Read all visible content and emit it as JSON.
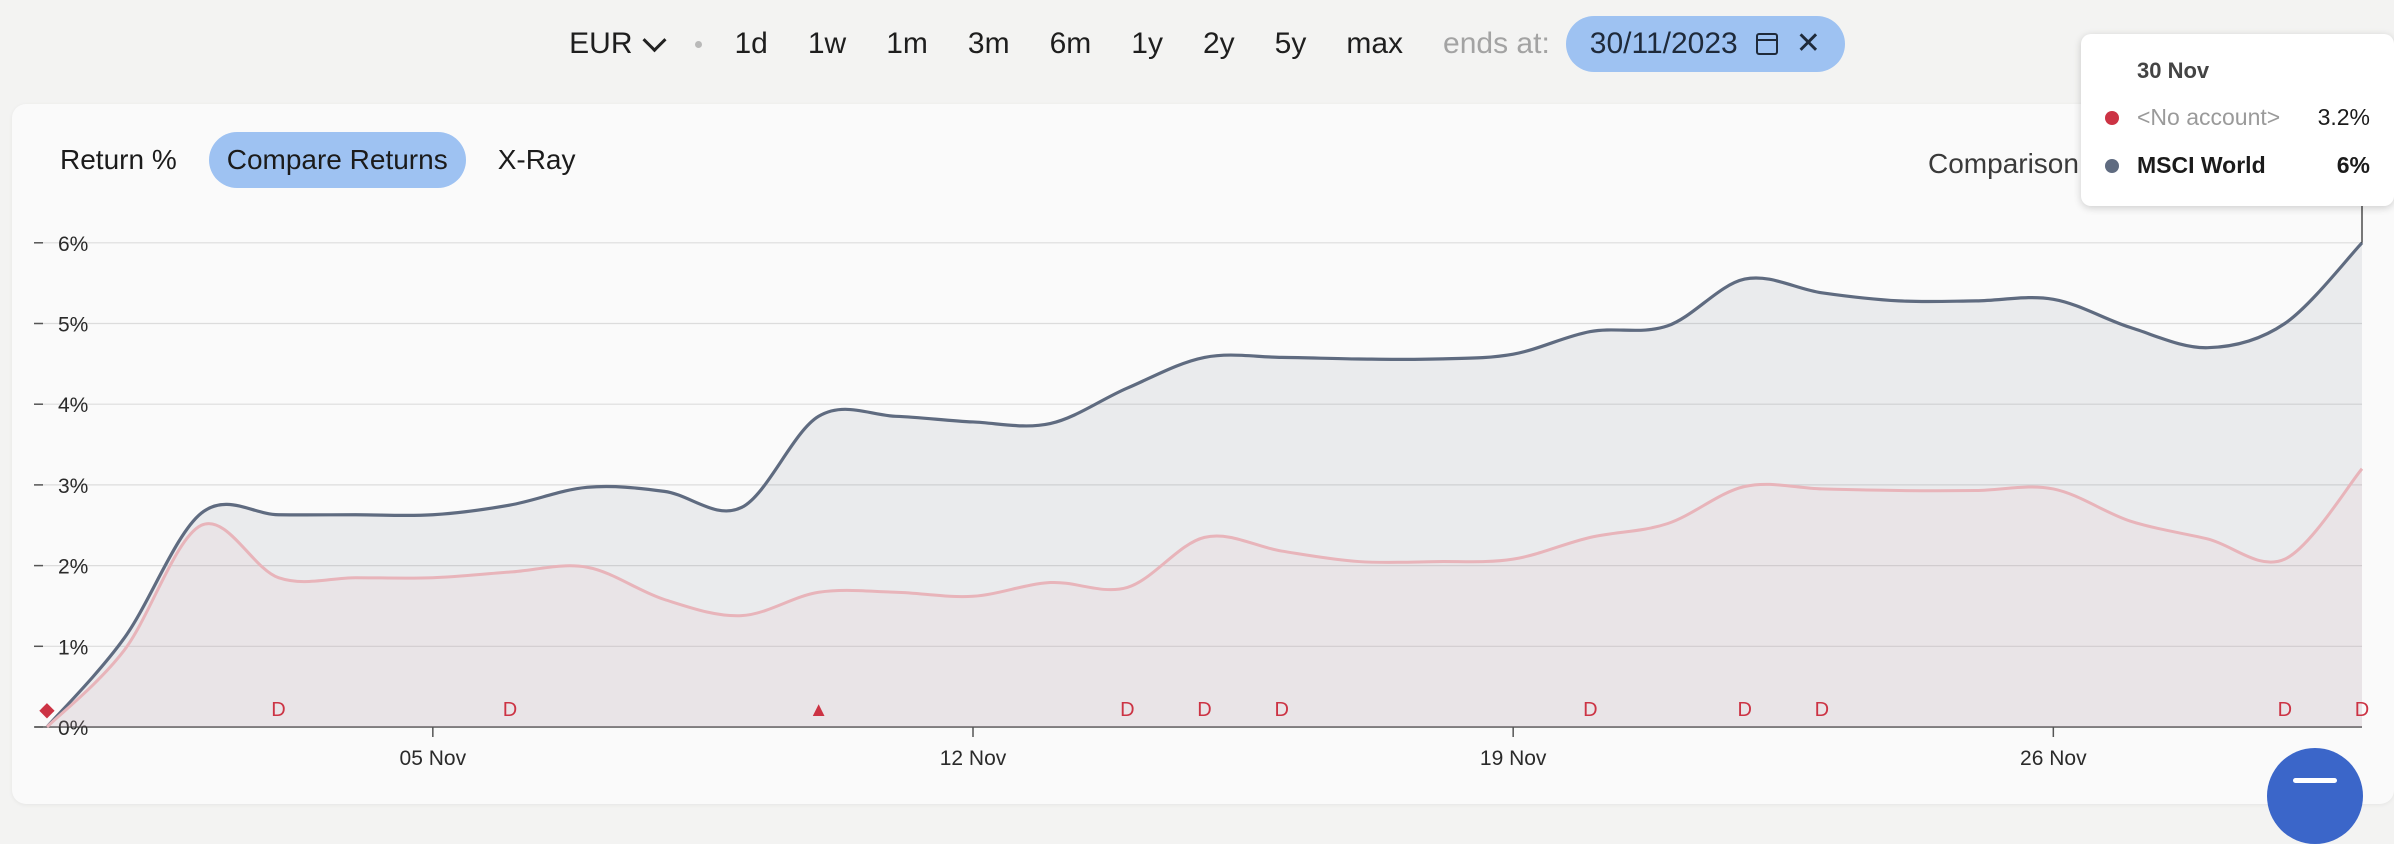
{
  "toolbar": {
    "currency": "EUR",
    "ranges": [
      "1d",
      "1w",
      "1m",
      "3m",
      "6m",
      "1y",
      "2y",
      "5y",
      "max"
    ],
    "ends_label": "ends at:",
    "end_date": "30/11/2023"
  },
  "tabs": [
    "Return %",
    "Compare Returns",
    "X-Ray"
  ],
  "active_tab": "Compare Returns",
  "comparison_label": "Comparison",
  "tooltip": {
    "title": "30 Nov",
    "rows": [
      {
        "name": "<No account>",
        "value": "3.2%",
        "color": "#cc3344"
      },
      {
        "name": "MSCI World",
        "value": "6%",
        "color": "#5f6b80"
      }
    ]
  },
  "colors": {
    "accent": "#9ec2f2",
    "msci": "#5f6b80",
    "account": "#e8b4ba",
    "marker": "#cc3344",
    "fab": "#3b66c9"
  },
  "chart_data": {
    "type": "line",
    "x_ticks": [
      "05 Nov",
      "12 Nov",
      "19 Nov",
      "26 Nov"
    ],
    "y_ticks": [
      "0%",
      "1%",
      "2%",
      "3%",
      "4%",
      "5%",
      "6%"
    ],
    "ylim": [
      0,
      6
    ],
    "grid": true,
    "x": [
      "31 Oct",
      "01 Nov",
      "02 Nov",
      "03 Nov",
      "04 Nov",
      "05 Nov",
      "06 Nov",
      "07 Nov",
      "08 Nov",
      "09 Nov",
      "10 Nov",
      "11 Nov",
      "12 Nov",
      "13 Nov",
      "14 Nov",
      "15 Nov",
      "16 Nov",
      "17 Nov",
      "18 Nov",
      "19 Nov",
      "20 Nov",
      "21 Nov",
      "22 Nov",
      "23 Nov",
      "24 Nov",
      "25 Nov",
      "26 Nov",
      "27 Nov",
      "28 Nov",
      "29 Nov",
      "30 Nov"
    ],
    "series": [
      {
        "name": "MSCI World",
        "values": [
          0,
          1.1,
          2.65,
          2.63,
          2.63,
          2.63,
          2.75,
          2.97,
          2.92,
          2.72,
          3.85,
          3.85,
          3.78,
          3.76,
          4.2,
          4.58,
          4.58,
          4.56,
          4.56,
          4.62,
          4.9,
          4.97,
          5.55,
          5.38,
          5.28,
          5.28,
          5.3,
          4.95,
          4.7,
          5.0,
          6.0
        ]
      },
      {
        "name": "<No account>",
        "values": [
          0,
          0.95,
          2.5,
          1.85,
          1.85,
          1.85,
          1.92,
          1.98,
          1.58,
          1.38,
          1.67,
          1.67,
          1.62,
          1.79,
          1.73,
          2.35,
          2.18,
          2.05,
          2.05,
          2.08,
          2.35,
          2.52,
          2.98,
          2.95,
          2.93,
          2.93,
          2.95,
          2.55,
          2.33,
          2.08,
          3.2
        ]
      }
    ],
    "event_markers": [
      {
        "date": "31 Oct",
        "symbol": "◆"
      },
      {
        "date": "03 Nov",
        "symbol": "D"
      },
      {
        "date": "06 Nov",
        "symbol": "D"
      },
      {
        "date": "10 Nov",
        "symbol": "▲"
      },
      {
        "date": "14 Nov",
        "symbol": "D"
      },
      {
        "date": "15 Nov",
        "symbol": "D"
      },
      {
        "date": "16 Nov",
        "symbol": "D"
      },
      {
        "date": "20 Nov",
        "symbol": "D"
      },
      {
        "date": "22 Nov",
        "symbol": "D"
      },
      {
        "date": "23 Nov",
        "symbol": "D"
      },
      {
        "date": "29 Nov",
        "symbol": "D"
      },
      {
        "date": "30 Nov",
        "symbol": "D"
      }
    ]
  }
}
